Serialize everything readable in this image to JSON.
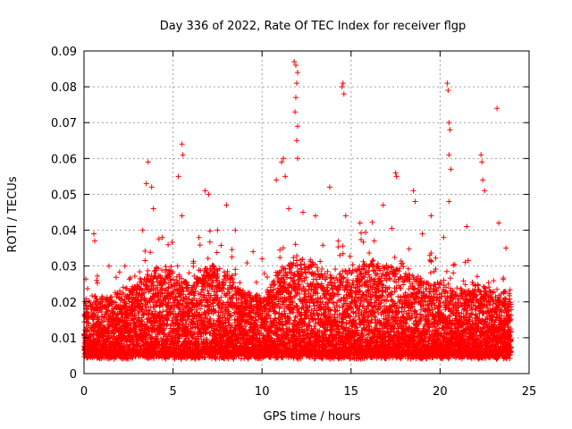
{
  "chart_data": {
    "type": "scatter",
    "title": "Day 336 of 2022, Rate Of TEC Index for receiver flgp",
    "xlabel": "GPS time / hours",
    "ylabel": "ROTI / TECUs",
    "xlim": [
      0,
      25
    ],
    "ylim": [
      0,
      0.09
    ],
    "x_ticks": [
      "0",
      "5",
      "10",
      "15",
      "20",
      "25"
    ],
    "y_ticks": [
      "0",
      "0.01",
      "0.02",
      "0.03",
      "0.04",
      "0.05",
      "0.06",
      "0.07",
      "0.08",
      "0.09"
    ],
    "grid": true,
    "marker": "+",
    "color": "#ff0000",
    "x_step_hours": 0.0083,
    "baseline_envelope": {
      "hours": [
        0,
        1,
        2,
        3,
        4,
        5,
        6,
        7,
        8,
        9,
        10,
        11,
        12,
        13,
        14,
        15,
        16,
        17,
        18,
        19,
        20,
        21,
        22,
        23,
        24
      ],
      "typical_max": [
        0.02,
        0.02,
        0.022,
        0.024,
        0.028,
        0.028,
        0.024,
        0.03,
        0.028,
        0.022,
        0.02,
        0.028,
        0.032,
        0.03,
        0.026,
        0.028,
        0.03,
        0.03,
        0.028,
        0.025,
        0.024,
        0.022,
        0.024,
        0.022,
        0.022
      ],
      "typical_min": 0.004
    },
    "highlight_points": [
      {
        "x": 0.55,
        "y": 0.039
      },
      {
        "x": 0.6,
        "y": 0.037
      },
      {
        "x": 1.4,
        "y": 0.03
      },
      {
        "x": 2.3,
        "y": 0.03
      },
      {
        "x": 3.3,
        "y": 0.04
      },
      {
        "x": 3.6,
        "y": 0.059
      },
      {
        "x": 3.5,
        "y": 0.053
      },
      {
        "x": 3.8,
        "y": 0.052
      },
      {
        "x": 3.9,
        "y": 0.046
      },
      {
        "x": 4.4,
        "y": 0.038
      },
      {
        "x": 5.3,
        "y": 0.055
      },
      {
        "x": 5.5,
        "y": 0.064
      },
      {
        "x": 5.55,
        "y": 0.061
      },
      {
        "x": 5.5,
        "y": 0.044
      },
      {
        "x": 6.8,
        "y": 0.051
      },
      {
        "x": 7.0,
        "y": 0.05
      },
      {
        "x": 7.5,
        "y": 0.04
      },
      {
        "x": 8.0,
        "y": 0.047
      },
      {
        "x": 8.5,
        "y": 0.04
      },
      {
        "x": 9.5,
        "y": 0.034
      },
      {
        "x": 10.0,
        "y": 0.032
      },
      {
        "x": 10.8,
        "y": 0.054
      },
      {
        "x": 11.1,
        "y": 0.059
      },
      {
        "x": 11.2,
        "y": 0.06
      },
      {
        "x": 11.3,
        "y": 0.055
      },
      {
        "x": 11.5,
        "y": 0.046
      },
      {
        "x": 11.8,
        "y": 0.087
      },
      {
        "x": 11.9,
        "y": 0.086
      },
      {
        "x": 12.0,
        "y": 0.084
      },
      {
        "x": 11.95,
        "y": 0.081
      },
      {
        "x": 11.9,
        "y": 0.077
      },
      {
        "x": 11.85,
        "y": 0.073
      },
      {
        "x": 12.0,
        "y": 0.069
      },
      {
        "x": 11.95,
        "y": 0.065
      },
      {
        "x": 12.0,
        "y": 0.06
      },
      {
        "x": 12.3,
        "y": 0.045
      },
      {
        "x": 13.0,
        "y": 0.044
      },
      {
        "x": 13.8,
        "y": 0.052
      },
      {
        "x": 14.5,
        "y": 0.08
      },
      {
        "x": 14.55,
        "y": 0.081
      },
      {
        "x": 14.6,
        "y": 0.078
      },
      {
        "x": 14.7,
        "y": 0.044
      },
      {
        "x": 15.5,
        "y": 0.042
      },
      {
        "x": 16.3,
        "y": 0.037
      },
      {
        "x": 16.8,
        "y": 0.047
      },
      {
        "x": 17.5,
        "y": 0.056
      },
      {
        "x": 17.55,
        "y": 0.055
      },
      {
        "x": 18.5,
        "y": 0.051
      },
      {
        "x": 18.6,
        "y": 0.048
      },
      {
        "x": 19.0,
        "y": 0.039
      },
      {
        "x": 19.5,
        "y": 0.044
      },
      {
        "x": 20.2,
        "y": 0.038
      },
      {
        "x": 20.4,
        "y": 0.081
      },
      {
        "x": 20.45,
        "y": 0.079
      },
      {
        "x": 20.5,
        "y": 0.07
      },
      {
        "x": 20.55,
        "y": 0.068
      },
      {
        "x": 20.5,
        "y": 0.061
      },
      {
        "x": 20.6,
        "y": 0.057
      },
      {
        "x": 20.5,
        "y": 0.048
      },
      {
        "x": 21.5,
        "y": 0.041
      },
      {
        "x": 22.3,
        "y": 0.061
      },
      {
        "x": 22.35,
        "y": 0.059
      },
      {
        "x": 22.4,
        "y": 0.054
      },
      {
        "x": 22.5,
        "y": 0.051
      },
      {
        "x": 23.2,
        "y": 0.074
      },
      {
        "x": 23.3,
        "y": 0.042
      },
      {
        "x": 23.7,
        "y": 0.035
      }
    ]
  }
}
